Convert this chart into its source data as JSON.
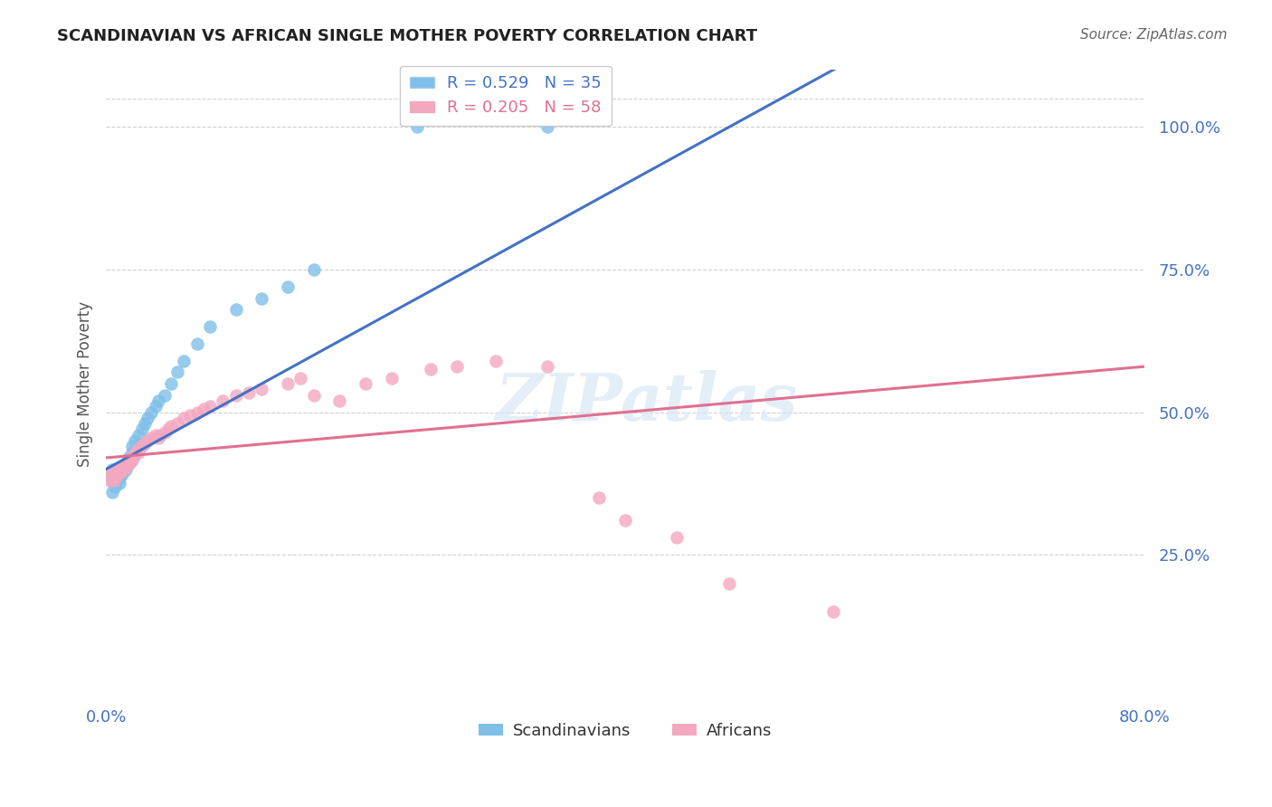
{
  "title": "SCANDINAVIAN VS AFRICAN SINGLE MOTHER POVERTY CORRELATION CHART",
  "source": "Source: ZipAtlas.com",
  "ylabel": "Single Mother Poverty",
  "xlim": [
    0.0,
    0.8
  ],
  "ylim": [
    0.0,
    1.1
  ],
  "yticks": [
    0.25,
    0.5,
    0.75,
    1.0
  ],
  "ytick_labels": [
    "25.0%",
    "50.0%",
    "75.0%",
    "100.0%"
  ],
  "xticks": [
    0.0,
    0.2,
    0.4,
    0.6,
    0.8
  ],
  "xtick_labels": [
    "0.0%",
    "",
    "",
    "",
    "80.0%"
  ],
  "scandinavian_R": 0.529,
  "scandinavian_N": 35,
  "african_R": 0.205,
  "african_N": 58,
  "blue_color": "#7fbfe8",
  "pink_color": "#f4a8bf",
  "blue_line_color": "#4472c4",
  "pink_line_color": "#e07090",
  "scandinavian_x": [
    0.005,
    0.005,
    0.005,
    0.007,
    0.007,
    0.01,
    0.01,
    0.012,
    0.013,
    0.015,
    0.015,
    0.017,
    0.018,
    0.02,
    0.02,
    0.022,
    0.025,
    0.028,
    0.03,
    0.032,
    0.035,
    0.038,
    0.04,
    0.045,
    0.05,
    0.055,
    0.06,
    0.07,
    0.08,
    0.1,
    0.12,
    0.14,
    0.16,
    0.24,
    0.34
  ],
  "scandinavian_y": [
    0.36,
    0.38,
    0.4,
    0.37,
    0.39,
    0.375,
    0.385,
    0.39,
    0.395,
    0.4,
    0.41,
    0.42,
    0.41,
    0.43,
    0.44,
    0.45,
    0.46,
    0.47,
    0.48,
    0.49,
    0.5,
    0.51,
    0.52,
    0.53,
    0.55,
    0.57,
    0.59,
    0.62,
    0.65,
    0.68,
    0.7,
    0.72,
    0.75,
    1.0,
    1.0
  ],
  "african_x": [
    0.003,
    0.004,
    0.005,
    0.006,
    0.007,
    0.008,
    0.009,
    0.01,
    0.011,
    0.012,
    0.013,
    0.014,
    0.015,
    0.016,
    0.017,
    0.018,
    0.019,
    0.02,
    0.021,
    0.022,
    0.023,
    0.024,
    0.025,
    0.028,
    0.03,
    0.032,
    0.035,
    0.038,
    0.04,
    0.042,
    0.045,
    0.048,
    0.05,
    0.055,
    0.06,
    0.065,
    0.07,
    0.075,
    0.08,
    0.09,
    0.1,
    0.11,
    0.12,
    0.14,
    0.15,
    0.16,
    0.18,
    0.2,
    0.22,
    0.25,
    0.27,
    0.3,
    0.34,
    0.38,
    0.4,
    0.44,
    0.48,
    0.56
  ],
  "african_y": [
    0.38,
    0.39,
    0.395,
    0.38,
    0.385,
    0.39,
    0.395,
    0.4,
    0.395,
    0.4,
    0.405,
    0.4,
    0.41,
    0.405,
    0.41,
    0.415,
    0.42,
    0.415,
    0.42,
    0.425,
    0.43,
    0.435,
    0.43,
    0.44,
    0.445,
    0.45,
    0.455,
    0.46,
    0.455,
    0.46,
    0.465,
    0.47,
    0.475,
    0.48,
    0.49,
    0.495,
    0.5,
    0.505,
    0.51,
    0.52,
    0.53,
    0.535,
    0.54,
    0.55,
    0.56,
    0.53,
    0.52,
    0.55,
    0.56,
    0.575,
    0.58,
    0.59,
    0.58,
    0.35,
    0.31,
    0.28,
    0.2,
    0.15
  ],
  "watermark_text": "ZIPatlas",
  "background_color": "#ffffff",
  "grid_color": "#d0d0d0",
  "title_color": "#222222",
  "source_color": "#666666",
  "axis_label_color": "#555555",
  "tick_color": "#4472c4"
}
